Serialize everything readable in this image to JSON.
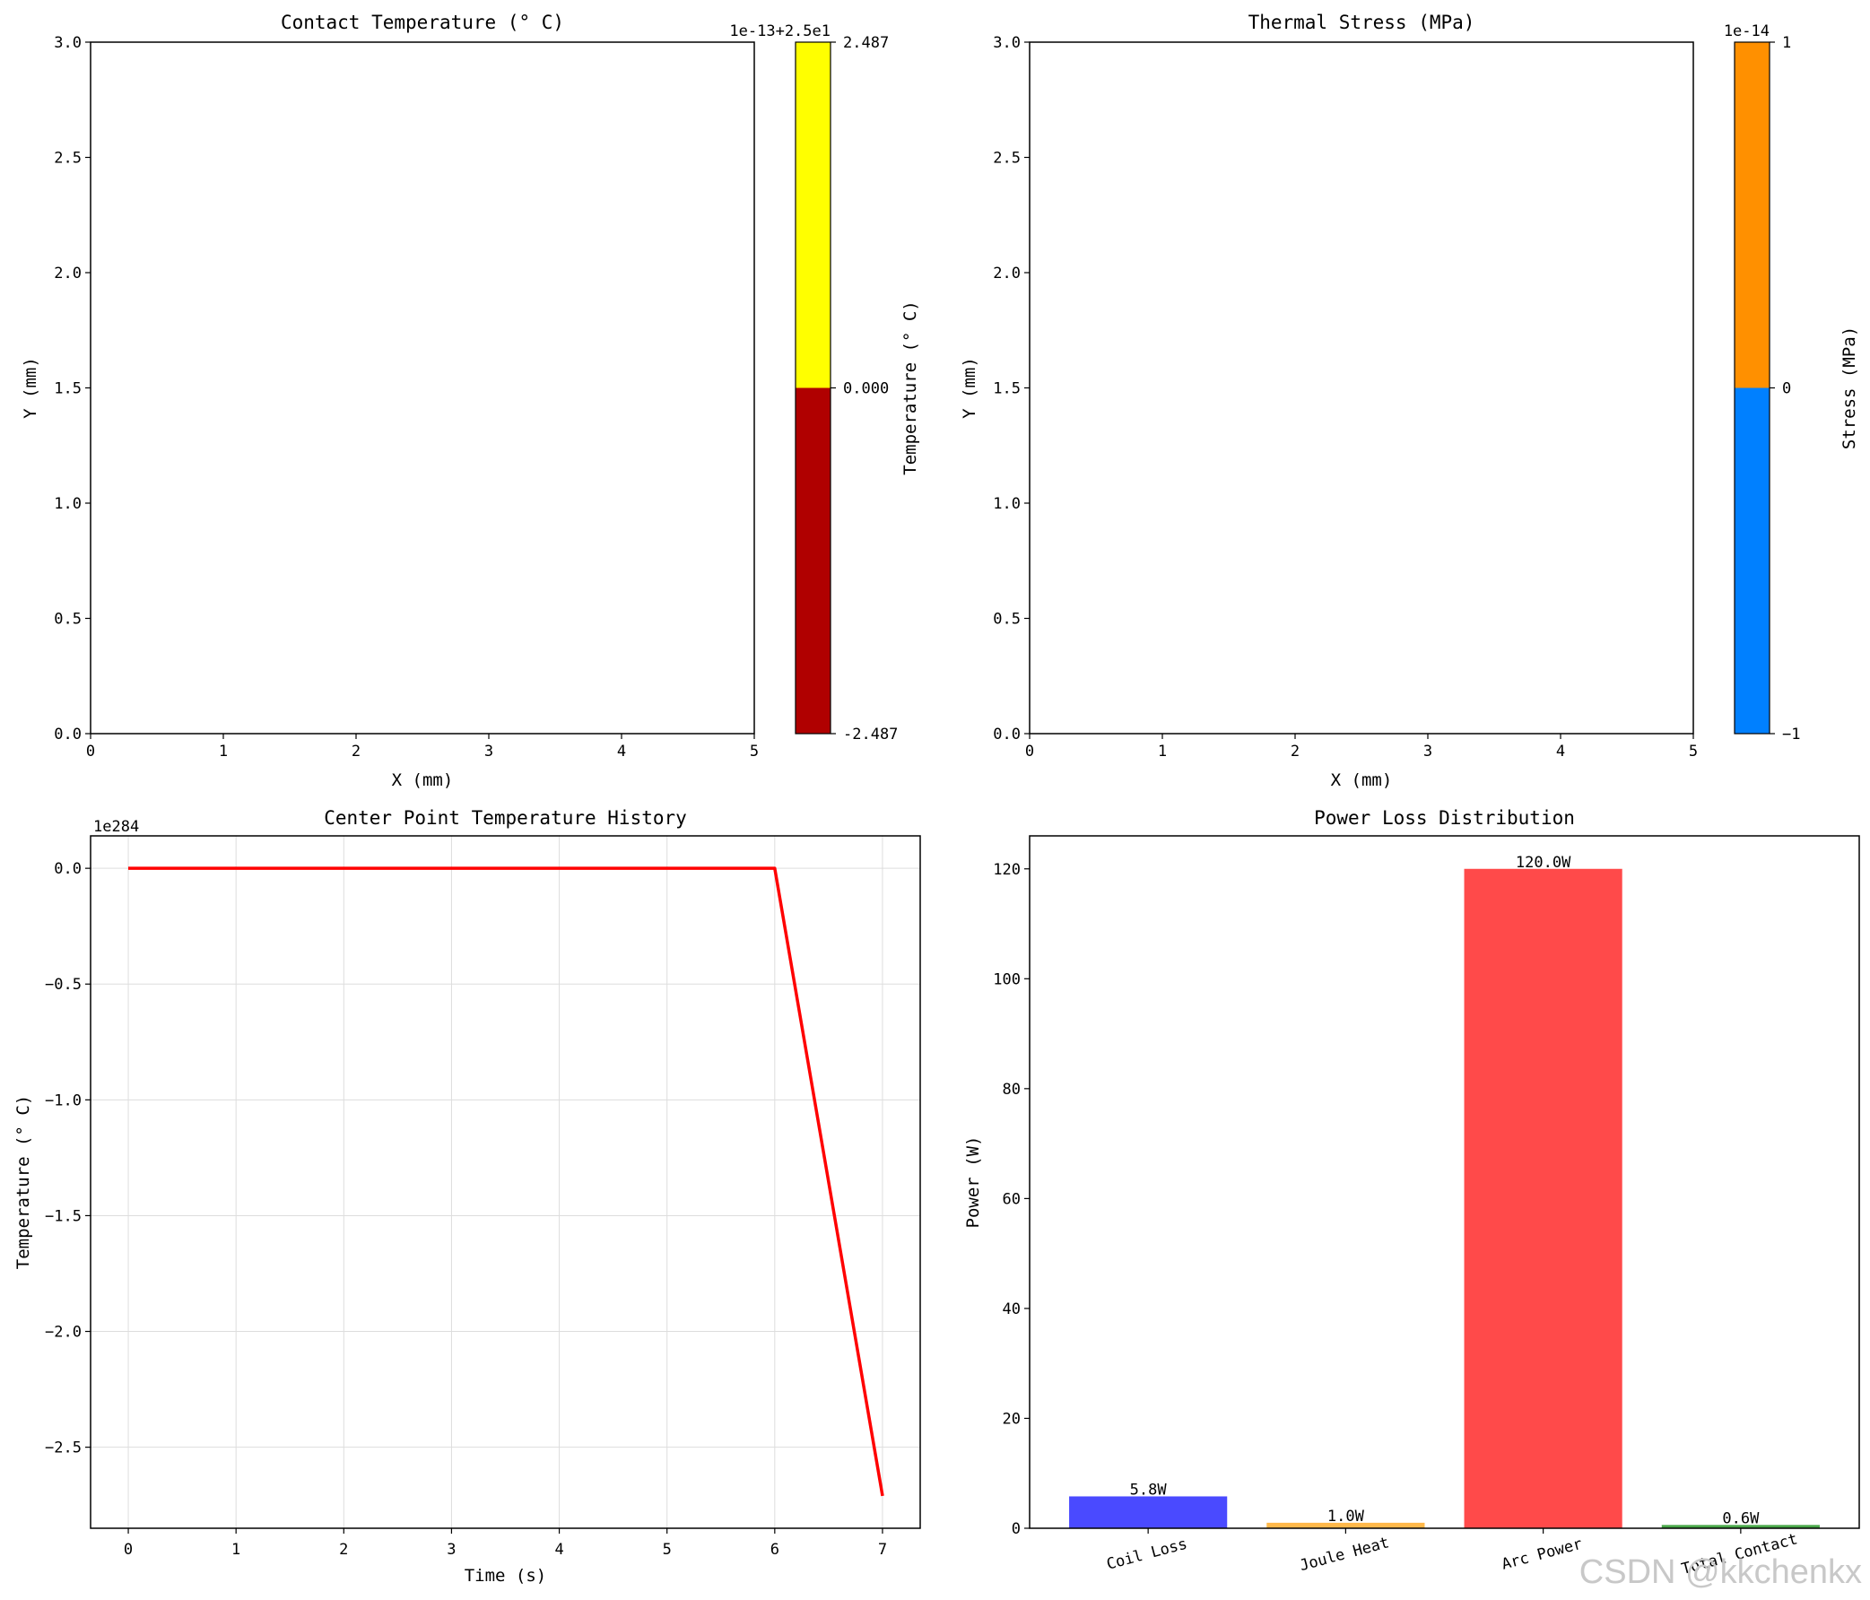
{
  "watermark": "CSDN @kkchenkx",
  "chart_data": [
    {
      "type": "heatmap",
      "title": "Contact Temperature (° C)",
      "xlabel": "X (mm)",
      "ylabel": "Y (mm)",
      "xlim": [
        0,
        5
      ],
      "ylim": [
        0,
        3
      ],
      "xticks": [
        "0",
        "1",
        "2",
        "3",
        "4",
        "5"
      ],
      "yticks": [
        "0.0",
        "0.5",
        "1.0",
        "1.5",
        "2.0",
        "2.5",
        "3.0"
      ],
      "colorbar": {
        "label": "Temperature (° C)",
        "offset_text": "1e-13+2.5e1",
        "ticks": [
          "-2.487",
          "0.000",
          "2.487"
        ],
        "bands": [
          {
            "from": -2.487,
            "to": 0.0,
            "color": "#b00000"
          },
          {
            "from": 0.0,
            "to": 2.487,
            "color": "#ffff00"
          }
        ]
      }
    },
    {
      "type": "heatmap",
      "title": "Thermal Stress (MPa)",
      "xlabel": "X (mm)",
      "ylabel": "Y (mm)",
      "xlim": [
        0,
        5
      ],
      "ylim": [
        0,
        3
      ],
      "xticks": [
        "0",
        "1",
        "2",
        "3",
        "4",
        "5"
      ],
      "yticks": [
        "0.0",
        "0.5",
        "1.0",
        "1.5",
        "2.0",
        "2.5",
        "3.0"
      ],
      "colorbar": {
        "label": "Stress (MPa)",
        "offset_text": "1e-14",
        "ticks": [
          "−1",
          "0",
          "1"
        ],
        "bands": [
          {
            "from": -1,
            "to": 0,
            "color": "#0080ff"
          },
          {
            "from": 0,
            "to": 1,
            "color": "#ff9000"
          }
        ]
      }
    },
    {
      "type": "line",
      "title": "Center Point Temperature History",
      "xlabel": "Time (s)",
      "ylabel": "Temperature (° C)",
      "offset_text": "1e284",
      "xlim": [
        -0.35,
        7.35
      ],
      "ylim": [
        -2.85,
        0.14
      ],
      "xticks": [
        0,
        1,
        2,
        3,
        4,
        5,
        6,
        7
      ],
      "yticks": [
        0.0,
        -0.5,
        -1.0,
        -1.5,
        -2.0,
        -2.5
      ],
      "ytick_labels": [
        "0.0",
        "−0.5",
        "−1.0",
        "−1.5",
        "−2.0",
        "−2.5"
      ],
      "grid": true,
      "series": [
        {
          "color": "#ff0000",
          "x": [
            0,
            1,
            2,
            3,
            4,
            5,
            6,
            7
          ],
          "y": [
            0,
            0,
            0,
            0,
            0,
            0,
            0,
            -2.71
          ]
        }
      ]
    },
    {
      "type": "bar",
      "title": "Power Loss Distribution",
      "xlabel": "",
      "ylabel": "Power (W)",
      "ylim": [
        0,
        126
      ],
      "yticks": [
        "0",
        "20",
        "40",
        "60",
        "80",
        "100",
        "120"
      ],
      "categories": [
        "Coil Loss",
        "Joule Heat",
        "Arc Power",
        "Total Contact"
      ],
      "values": [
        5.8,
        1.0,
        120.0,
        0.6
      ],
      "data_labels": [
        "5.8W",
        "1.0W",
        "120.0W",
        "0.6W"
      ],
      "colors": [
        "#4a4aff",
        "#ffb84a",
        "#ff4a4a",
        "#4aa84a"
      ]
    }
  ]
}
